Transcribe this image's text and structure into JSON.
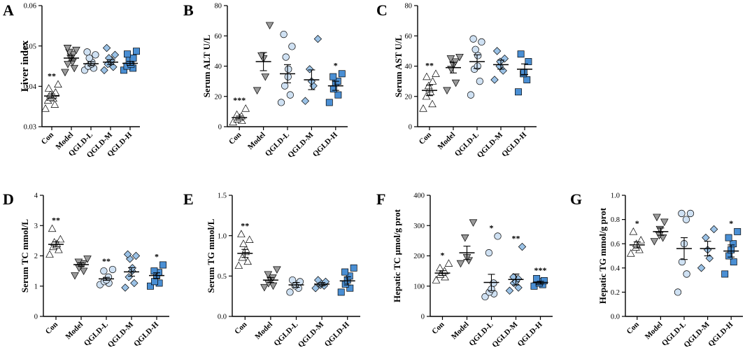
{
  "groups": [
    "Con",
    "Model",
    "QGLD-L",
    "QGLD-M",
    "QGLD-H"
  ],
  "group_styles": [
    {
      "shape": "triangle-up",
      "fill": "#ffffff"
    },
    {
      "shape": "triangle-down",
      "fill": "#9a9a9a"
    },
    {
      "shape": "circle",
      "fill": "#cfe1f3"
    },
    {
      "shape": "diamond",
      "fill": "#9bc2e6"
    },
    {
      "shape": "square",
      "fill": "#4a8fd4"
    }
  ],
  "chart_data": [
    {
      "type": "scatter",
      "letter": "A",
      "ylabel": "Liver index",
      "ylim": [
        0.03,
        0.06
      ],
      "yticks": [
        "0.03",
        "0.04",
        "0.05",
        "0.06"
      ],
      "big_title": true,
      "points": [
        [
          0.0345,
          0.0355,
          0.0365,
          0.037,
          0.0372,
          0.0375,
          0.0378,
          0.038,
          0.0385,
          0.0395,
          0.0405
        ],
        [
          0.0435,
          0.0445,
          0.0455,
          0.046,
          0.047,
          0.0475,
          0.048,
          0.0485,
          0.049,
          0.0495
        ],
        [
          0.044,
          0.0445,
          0.045,
          0.0455,
          0.046,
          0.047,
          0.0478,
          0.0485
        ],
        [
          0.044,
          0.0448,
          0.0455,
          0.046,
          0.0465,
          0.047,
          0.0478,
          0.0495
        ],
        [
          0.044,
          0.0445,
          0.045,
          0.0455,
          0.046,
          0.0465,
          0.047,
          0.048,
          0.0487
        ]
      ],
      "means": [
        0.0376,
        0.047,
        0.0456,
        0.046,
        0.0457
      ],
      "sems": [
        0.0005,
        0.0007,
        0.0005,
        0.0006,
        0.0005
      ],
      "sig": [
        "**",
        "",
        "",
        "",
        ""
      ]
    },
    {
      "type": "scatter",
      "letter": "B",
      "ylabel": "Serum ALT U/L",
      "ylim": [
        0,
        80
      ],
      "yticks": [
        "0",
        "20",
        "40",
        "60",
        "80"
      ],
      "big_title": false,
      "points": [
        [
          3,
          4,
          5,
          6,
          7,
          8,
          12
        ],
        [
          24,
          33,
          45,
          47,
          67
        ],
        [
          16,
          21,
          27,
          33,
          38,
          46,
          53,
          61
        ],
        [
          17,
          27,
          30,
          38,
          58
        ],
        [
          16,
          21,
          25,
          29,
          30,
          33,
          35
        ]
      ],
      "means": [
        6,
        43,
        35,
        31,
        27
      ],
      "sems": [
        1.0,
        6.0,
        6.0,
        6.5,
        3.0
      ],
      "sig": [
        "***",
        "",
        "",
        "",
        "*"
      ]
    },
    {
      "type": "scatter",
      "letter": "C",
      "ylabel": "Serum AST U/L",
      "ylim": [
        0,
        80
      ],
      "yticks": [
        "0",
        "20",
        "40",
        "60",
        "80"
      ],
      "big_title": false,
      "points": [
        [
          12,
          15,
          20,
          23,
          25,
          27,
          30,
          33,
          35
        ],
        [
          24,
          29,
          38,
          41,
          43,
          45,
          46
        ],
        [
          21,
          30,
          38,
          40,
          47,
          51,
          56,
          58
        ],
        [
          31,
          37,
          40,
          43,
          45,
          50
        ],
        [
          23,
          31,
          35,
          36,
          43,
          48
        ]
      ],
      "means": [
        24,
        39,
        43,
        41,
        38
      ],
      "sems": [
        3.5,
        3.5,
        4.5,
        3.0,
        3.5
      ],
      "sig": [
        "**",
        "",
        "",
        "",
        ""
      ]
    },
    {
      "type": "scatter",
      "letter": "D",
      "ylabel": "Serum TC mmol/L",
      "ylim": [
        0,
        4
      ],
      "yticks": [
        "0",
        "1",
        "2",
        "3",
        "4"
      ],
      "big_title": false,
      "points": [
        [
          2.05,
          2.2,
          2.3,
          2.35,
          2.4,
          2.45,
          2.55,
          2.9
        ],
        [
          1.35,
          1.5,
          1.6,
          1.7,
          1.75,
          1.8,
          1.9
        ],
        [
          1.05,
          1.1,
          1.15,
          1.2,
          1.3,
          1.5,
          1.55
        ],
        [
          0.95,
          1.1,
          1.3,
          1.5,
          1.6,
          1.9,
          2.0,
          2.05
        ],
        [
          1.0,
          1.1,
          1.15,
          1.35,
          1.45,
          1.5,
          1.7
        ]
      ],
      "means": [
        2.38,
        1.71,
        1.24,
        1.47,
        1.35
      ],
      "sems": [
        0.08,
        0.06,
        0.05,
        0.14,
        0.09
      ],
      "sig": [
        "**",
        "",
        "**",
        "",
        "*"
      ]
    },
    {
      "type": "scatter",
      "letter": "E",
      "ylabel": "Serum TG mmol/L",
      "ylim": [
        0,
        1.5
      ],
      "yticks": [
        "0.0",
        "0.5",
        "1.0",
        "1.5"
      ],
      "big_title": false,
      "points": [
        [
          0.63,
          0.68,
          0.73,
          0.8,
          0.83,
          0.9,
          0.95,
          1.02
        ],
        [
          0.36,
          0.38,
          0.41,
          0.45,
          0.48,
          0.52,
          0.58
        ],
        [
          0.3,
          0.35,
          0.38,
          0.4,
          0.43,
          0.45
        ],
        [
          0.35,
          0.38,
          0.39,
          0.41,
          0.43,
          0.45
        ],
        [
          0.3,
          0.35,
          0.4,
          0.45,
          0.5,
          0.55,
          0.6
        ]
      ],
      "means": [
        0.78,
        0.45,
        0.39,
        0.4,
        0.44
      ],
      "sems": [
        0.05,
        0.03,
        0.03,
        0.02,
        0.05
      ],
      "sig": [
        "**",
        "",
        "",
        "",
        ""
      ]
    },
    {
      "type": "scatter",
      "letter": "F",
      "ylabel": "Hepatic TC μmol/g prot",
      "ylim": [
        0,
        400
      ],
      "yticks": [
        "0",
        "100",
        "200",
        "300",
        "400"
      ],
      "big_title": false,
      "points": [
        [
          120,
          130,
          138,
          145,
          150,
          160,
          175
        ],
        [
          175,
          185,
          195,
          260,
          310
        ],
        [
          65,
          75,
          80,
          90,
          110,
          210,
          265
        ],
        [
          85,
          95,
          110,
          115,
          125,
          130,
          230
        ],
        [
          100,
          105,
          110,
          115,
          118,
          125
        ]
      ],
      "means": [
        143,
        210,
        112,
        122,
        112
      ],
      "sems": [
        8,
        22,
        27,
        18,
        4
      ],
      "sig": [
        "*",
        "",
        "*",
        "**",
        "***"
      ]
    },
    {
      "type": "scatter",
      "letter": "G",
      "ylabel": "Hepatic TG mmol/g prot",
      "ylim": [
        0,
        1.0
      ],
      "yticks": [
        "0.0",
        "0.2",
        "0.4",
        "0.6",
        "0.8",
        "1.0"
      ],
      "big_title": false,
      "points": [
        [
          0.52,
          0.55,
          0.57,
          0.6,
          0.63,
          0.7
        ],
        [
          0.62,
          0.65,
          0.67,
          0.72,
          0.78,
          0.82
        ],
        [
          0.2,
          0.35,
          0.45,
          0.6,
          0.8,
          0.85,
          0.85
        ],
        [
          0.4,
          0.48,
          0.55,
          0.65,
          0.72
        ],
        [
          0.35,
          0.45,
          0.5,
          0.55,
          0.6,
          0.65,
          0.7
        ]
      ],
      "means": [
        0.59,
        0.7,
        0.56,
        0.56,
        0.54
      ],
      "sems": [
        0.025,
        0.03,
        0.09,
        0.06,
        0.05
      ],
      "sig": [
        "*",
        "",
        "",
        "",
        "*"
      ]
    }
  ]
}
